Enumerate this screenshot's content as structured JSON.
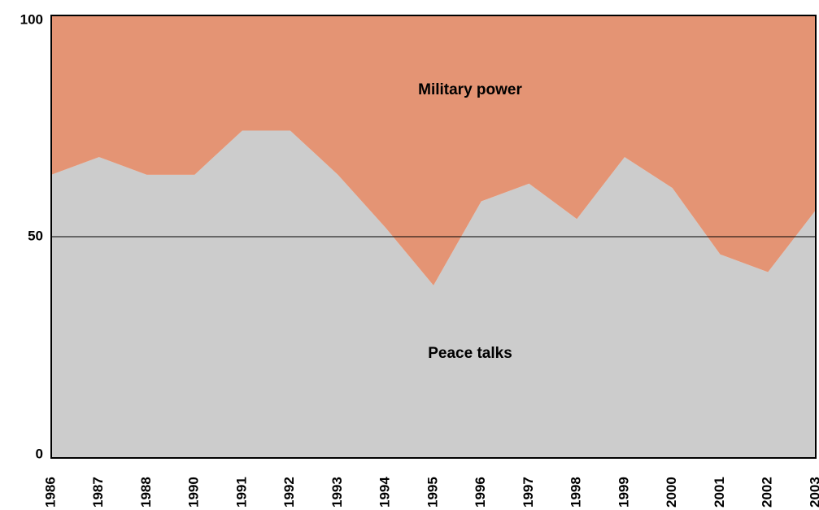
{
  "chart_data": {
    "type": "stacked_area",
    "categories": [
      "1986",
      "1987",
      "1988",
      "1990",
      "1991",
      "1992",
      "1993",
      "1994",
      "1995",
      "1996",
      "1997",
      "1998",
      "1999",
      "2000",
      "2001",
      "2002",
      "2003"
    ],
    "series": [
      {
        "name": "Peace talks",
        "color": "#cccccc",
        "values": [
          64,
          68,
          64,
          64,
          74,
          74,
          64,
          52,
          39,
          58,
          62,
          54,
          68,
          61,
          46,
          42,
          56
        ]
      },
      {
        "name": "Military power",
        "color": "#e49474",
        "values": [
          36,
          32,
          36,
          36,
          26,
          26,
          36,
          48,
          61,
          42,
          38,
          46,
          32,
          39,
          54,
          58,
          44
        ]
      }
    ],
    "ylim": [
      0,
      100
    ],
    "yticks": [
      0,
      50,
      100
    ],
    "grid": true
  }
}
